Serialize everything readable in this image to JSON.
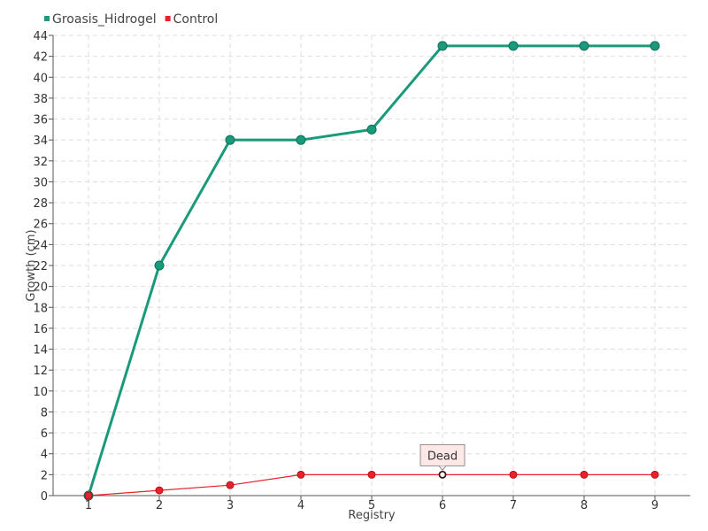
{
  "chart_data": {
    "type": "line",
    "x": [
      1,
      2,
      3,
      4,
      5,
      6,
      7,
      8,
      9
    ],
    "xlabel": "Registry",
    "ylabel": "Growth (cm)",
    "ylim": [
      0,
      44
    ],
    "ytick_step": 2,
    "grid": true,
    "legend_position": "top-left",
    "series": [
      {
        "name": "Groasis_Hidrogel",
        "color": "#1a9a7a",
        "values": [
          0,
          22,
          34,
          34,
          35,
          43,
          43,
          43,
          43
        ]
      },
      {
        "name": "Control",
        "color": "#e8212b",
        "values": [
          0,
          0.5,
          1,
          2,
          2,
          2,
          2,
          2,
          2
        ]
      }
    ],
    "annotations": [
      {
        "series": "Control",
        "x": 6,
        "text": "Dead"
      }
    ]
  }
}
